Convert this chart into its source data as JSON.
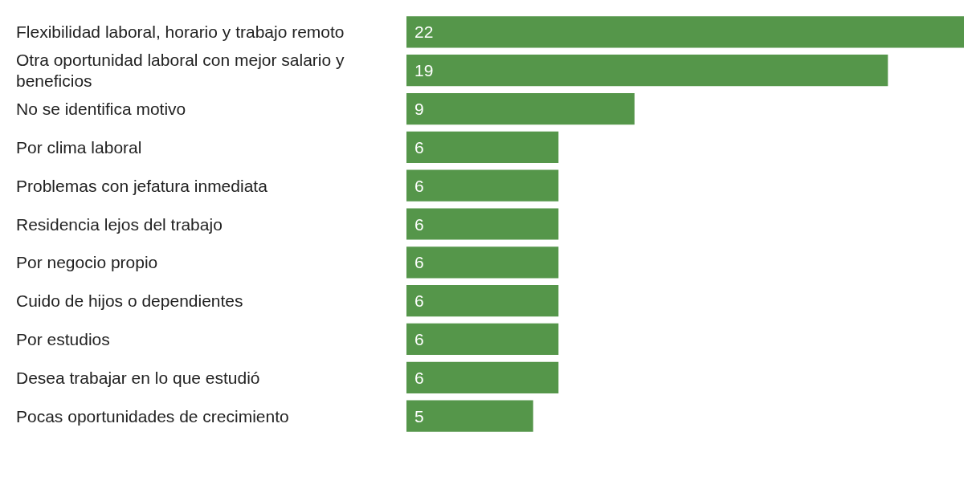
{
  "chart_data": {
    "type": "bar",
    "orientation": "horizontal",
    "categories": [
      "Flexibilidad laboral, horario y trabajo remoto",
      "Otra oportunidad laboral con mejor salario y beneficios",
      "No se identifica motivo",
      "Por clima laboral",
      "Problemas con jefatura inmediata",
      "Residencia lejos del trabajo",
      "Por negocio propio",
      "Cuido de hijos o dependientes",
      "Por estudios",
      "Desea trabajar en lo que estudió",
      "Pocas oportunidades de crecimiento"
    ],
    "values": [
      22,
      19,
      9,
      6,
      6,
      6,
      6,
      6,
      6,
      6,
      5
    ],
    "color": "#55964a",
    "data_labels": true
  }
}
